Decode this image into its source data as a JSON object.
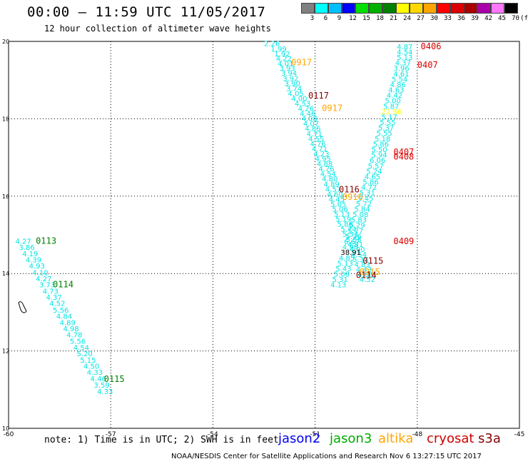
{
  "title": "00:00 – 11:59 UTC 11/05/2017",
  "subtitle": "12 hour collection of altimeter wave heights",
  "legend": {
    "unit": "(ft)",
    "bins": [
      {
        "label": "3",
        "color": "#808080"
      },
      {
        "label": "6",
        "color": "#00ffff"
      },
      {
        "label": "9",
        "color": "#00bfff"
      },
      {
        "label": "12",
        "color": "#0000ff"
      },
      {
        "label": "15",
        "color": "#00e000"
      },
      {
        "label": "18",
        "color": "#00b000"
      },
      {
        "label": "21",
        "color": "#008000"
      },
      {
        "label": "24",
        "color": "#ffff00"
      },
      {
        "label": "27",
        "color": "#ffd700"
      },
      {
        "label": "30",
        "color": "#ffa500"
      },
      {
        "label": "33",
        "color": "#ff0000"
      },
      {
        "label": "36",
        "color": "#dd0000"
      },
      {
        "label": "39",
        "color": "#aa0000"
      },
      {
        "label": "42",
        "color": "#aa00aa"
      },
      {
        "label": "45",
        "color": "#ff77ff"
      },
      {
        "label": "70",
        "color": "#000000"
      }
    ]
  },
  "footer": {
    "note": "note: 1) Time is in UTC; 2) SWH is in feet",
    "credit": "NOAA/NESDIS Center for Satellite Applications and Research   Nov  6 13:27:15 UTC 2017",
    "missions": [
      {
        "name": "jason2",
        "color": "#0000ee"
      },
      {
        "name": "jason3",
        "color": "#00aa00"
      },
      {
        "name": "altika",
        "color": "#ffa500"
      },
      {
        "name": "cryosat",
        "color": "#cc0000"
      },
      {
        "name": "s3a",
        "color": "#880000"
      }
    ]
  },
  "chart_data": {
    "type": "scatter",
    "title": "00:00 – 11:59 UTC 11/05/2017",
    "subtitle": "12 hour collection of altimeter wave heights",
    "xlim": [
      -60,
      -45
    ],
    "ylim": [
      10,
      20
    ],
    "xticks": [
      "-60",
      "-57",
      "-54",
      "-51",
      "-48",
      "-45"
    ],
    "yticks": [
      "10",
      "12",
      "14",
      "16",
      "18",
      "20"
    ],
    "grid": true,
    "value_color": "#00e5e5",
    "tracks": [
      {
        "name": "track-west",
        "points": [
          {
            "x": -59.8,
            "y": 14.77,
            "v": "4.27"
          },
          {
            "x": -59.7,
            "y": 14.61,
            "v": "3.86"
          },
          {
            "x": -59.6,
            "y": 14.45,
            "v": "4.19"
          },
          {
            "x": -59.5,
            "y": 14.29,
            "v": "4.39"
          },
          {
            "x": -59.4,
            "y": 14.13,
            "v": "4.93"
          },
          {
            "x": -59.3,
            "y": 13.96,
            "v": "4.10"
          },
          {
            "x": -59.2,
            "y": 13.8,
            "v": "4.27"
          },
          {
            "x": -59.1,
            "y": 13.64,
            "v": "3.73"
          },
          {
            "x": -59.0,
            "y": 13.48,
            "v": "4.73"
          },
          {
            "x": -58.9,
            "y": 13.32,
            "v": "4.37"
          },
          {
            "x": -58.8,
            "y": 13.16,
            "v": "4.52"
          },
          {
            "x": -58.7,
            "y": 12.99,
            "v": "5.56"
          },
          {
            "x": -58.6,
            "y": 12.83,
            "v": "4.84"
          },
          {
            "x": -58.5,
            "y": 12.67,
            "v": "4.89"
          },
          {
            "x": -58.4,
            "y": 12.51,
            "v": "4.98"
          },
          {
            "x": -58.3,
            "y": 12.35,
            "v": "4.78"
          },
          {
            "x": -58.2,
            "y": 12.19,
            "v": "5.56"
          },
          {
            "x": -58.1,
            "y": 12.02,
            "v": "4.54"
          },
          {
            "x": -58.0,
            "y": 11.86,
            "v": "5.20"
          },
          {
            "x": -57.9,
            "y": 11.7,
            "v": "5.15"
          },
          {
            "x": -57.8,
            "y": 11.54,
            "v": "4.50"
          },
          {
            "x": -57.7,
            "y": 11.38,
            "v": "4.33"
          },
          {
            "x": -57.6,
            "y": 11.22,
            "v": "4.46"
          },
          {
            "x": -57.5,
            "y": 11.05,
            "v": "3.59"
          },
          {
            "x": -57.4,
            "y": 10.89,
            "v": "4.33"
          }
        ]
      },
      {
        "name": "track-central",
        "points": [
          {
            "x": -52.5,
            "y": 19.88,
            "v": "2.26"
          },
          {
            "x": -52.3,
            "y": 19.74,
            "v": "1.99"
          },
          {
            "x": -52.2,
            "y": 19.61,
            "v": "1.92"
          },
          {
            "x": -52.15,
            "y": 19.49,
            "v": "4.22"
          },
          {
            "x": -52.1,
            "y": 19.36,
            "v": "4.01"
          },
          {
            "x": -52.05,
            "y": 19.24,
            "v": "3.93"
          },
          {
            "x": -52.0,
            "y": 19.11,
            "v": "3.94"
          },
          {
            "x": -51.95,
            "y": 18.98,
            "v": "3.92"
          },
          {
            "x": -51.9,
            "y": 18.85,
            "v": "3.90"
          },
          {
            "x": -51.85,
            "y": 18.72,
            "v": "3.74"
          },
          {
            "x": -51.8,
            "y": 18.59,
            "v": "4.05"
          },
          {
            "x": -51.7,
            "y": 18.46,
            "v": "4.00"
          },
          {
            "x": -51.6,
            "y": 18.33,
            "v": "4.53"
          },
          {
            "x": -51.5,
            "y": 18.2,
            "v": "4.26"
          },
          {
            "x": -51.45,
            "y": 18.07,
            "v": "4.46"
          },
          {
            "x": -51.4,
            "y": 17.94,
            "v": "4.08"
          },
          {
            "x": -51.35,
            "y": 17.81,
            "v": "4.07"
          },
          {
            "x": -51.3,
            "y": 17.68,
            "v": "4.86"
          },
          {
            "x": -51.25,
            "y": 17.55,
            "v": "4.71"
          },
          {
            "x": -51.2,
            "y": 17.42,
            "v": "4.55"
          },
          {
            "x": -51.15,
            "y": 17.29,
            "v": "4.76"
          },
          {
            "x": -51.1,
            "y": 17.16,
            "v": "4.71"
          },
          {
            "x": -51.05,
            "y": 17.03,
            "v": "4.23"
          },
          {
            "x": -51.0,
            "y": 16.9,
            "v": "4.95"
          },
          {
            "x": -50.95,
            "y": 16.77,
            "v": "4.88"
          },
          {
            "x": -50.9,
            "y": 16.64,
            "v": "4.76"
          },
          {
            "x": -50.85,
            "y": 16.51,
            "v": "4.54"
          },
          {
            "x": -50.8,
            "y": 16.38,
            "v": "4.80"
          },
          {
            "x": -50.75,
            "y": 16.25,
            "v": "4.89"
          },
          {
            "x": -50.7,
            "y": 16.12,
            "v": "4.57"
          },
          {
            "x": -50.65,
            "y": 15.99,
            "v": "4.60"
          },
          {
            "x": -50.6,
            "y": 15.86,
            "v": "4.45"
          },
          {
            "x": -50.55,
            "y": 15.73,
            "v": "5.05"
          },
          {
            "x": -50.5,
            "y": 15.6,
            "v": "5.06"
          },
          {
            "x": -50.45,
            "y": 15.47,
            "v": "5.13"
          },
          {
            "x": -50.4,
            "y": 15.34,
            "v": "5.19"
          },
          {
            "x": -50.35,
            "y": 15.21,
            "v": "5.86"
          },
          {
            "x": -50.25,
            "y": 15.08,
            "v": "5.74"
          },
          {
            "x": -50.2,
            "y": 14.95,
            "v": "5.33"
          },
          {
            "x": -50.1,
            "y": 14.82,
            "v": "5.55"
          },
          {
            "x": -50.05,
            "y": 14.69,
            "v": "4.81"
          },
          {
            "x": -50.0,
            "y": 14.56,
            "v": "4.90"
          },
          {
            "x": -49.95,
            "y": 14.43,
            "v": "4.54"
          },
          {
            "x": -49.9,
            "y": 14.3,
            "v": "5.37"
          },
          {
            "x": -49.85,
            "y": 14.17,
            "v": "4.83"
          },
          {
            "x": -49.8,
            "y": 14.04,
            "v": "4.43"
          },
          {
            "x": -49.75,
            "y": 13.91,
            "v": "4.60"
          },
          {
            "x": -49.7,
            "y": 13.78,
            "v": "4.52"
          }
        ]
      },
      {
        "name": "track-east",
        "points": [
          {
            "x": -48.6,
            "y": 19.8,
            "v": "4.87"
          },
          {
            "x": -48.6,
            "y": 19.66,
            "v": "4.54"
          },
          {
            "x": -48.6,
            "y": 19.52,
            "v": "5.13"
          },
          {
            "x": -48.65,
            "y": 19.38,
            "v": "4.37"
          },
          {
            "x": -48.7,
            "y": 19.24,
            "v": "3.96"
          },
          {
            "x": -48.7,
            "y": 19.1,
            "v": "4.61"
          },
          {
            "x": -48.75,
            "y": 18.96,
            "v": "5.54"
          },
          {
            "x": -48.8,
            "y": 18.82,
            "v": "4.86"
          },
          {
            "x": -48.85,
            "y": 18.68,
            "v": "4.63"
          },
          {
            "x": -48.9,
            "y": 18.54,
            "v": "4.42"
          },
          {
            "x": -48.95,
            "y": 18.4,
            "v": "5.00"
          },
          {
            "x": -49.0,
            "y": 18.26,
            "v": "5.87"
          },
          {
            "x": -49.05,
            "y": 18.12,
            "v": "22.56",
            "color": "#ffff00"
          },
          {
            "x": -49.05,
            "y": 17.98,
            "v": "5.17"
          },
          {
            "x": -49.1,
            "y": 17.84,
            "v": "5.55"
          },
          {
            "x": -49.15,
            "y": 17.7,
            "v": "5.37"
          },
          {
            "x": -49.2,
            "y": 17.56,
            "v": "5.55"
          },
          {
            "x": -49.25,
            "y": 17.42,
            "v": "5.18"
          },
          {
            "x": -49.3,
            "y": 17.28,
            "v": "5.86"
          },
          {
            "x": -49.35,
            "y": 17.14,
            "v": "5.50"
          },
          {
            "x": -49.35,
            "y": 17.0,
            "v": "5.94"
          },
          {
            "x": -49.4,
            "y": 16.86,
            "v": "6.06"
          },
          {
            "x": -49.45,
            "y": 16.72,
            "v": "5.57"
          },
          {
            "x": -49.5,
            "y": 16.58,
            "v": "5.24"
          },
          {
            "x": -49.55,
            "y": 16.44,
            "v": "4.65"
          },
          {
            "x": -49.6,
            "y": 16.3,
            "v": "5.86"
          },
          {
            "x": -49.65,
            "y": 16.16,
            "v": "4.72"
          },
          {
            "x": -49.7,
            "y": 16.02,
            "v": "5.31"
          },
          {
            "x": -49.75,
            "y": 15.88,
            "v": "5.45"
          },
          {
            "x": -49.8,
            "y": 15.74,
            "v": "5.72"
          },
          {
            "x": -49.85,
            "y": 15.6,
            "v": "5.84"
          },
          {
            "x": -49.9,
            "y": 15.46,
            "v": "5.08"
          },
          {
            "x": -49.95,
            "y": 15.32,
            "v": "5.83"
          },
          {
            "x": -50.0,
            "y": 15.18,
            "v": "5.29"
          },
          {
            "x": -50.05,
            "y": 15.04,
            "v": "5.77"
          },
          {
            "x": -50.1,
            "y": 14.9,
            "v": "5.36"
          },
          {
            "x": -50.15,
            "y": 14.76,
            "v": "6.67"
          },
          {
            "x": -50.2,
            "y": 14.62,
            "v": "4.98"
          },
          {
            "x": -50.25,
            "y": 14.48,
            "v": "38.91",
            "color": "#000000"
          },
          {
            "x": -50.3,
            "y": 14.34,
            "v": "4.85"
          },
          {
            "x": -50.35,
            "y": 14.2,
            "v": "5.13"
          },
          {
            "x": -50.4,
            "y": 14.06,
            "v": "5.43"
          },
          {
            "x": -50.45,
            "y": 13.92,
            "v": "5.08"
          },
          {
            "x": -50.5,
            "y": 13.78,
            "v": "5.31"
          },
          {
            "x": -50.55,
            "y": 13.64,
            "v": "4.13"
          }
        ]
      }
    ],
    "pass_labels": [
      {
        "text": "0406",
        "x": -47.9,
        "y": 19.8,
        "color": "#dd0000"
      },
      {
        "text": "0407",
        "x": -48.0,
        "y": 19.32,
        "color": "#dd0000"
      },
      {
        "text": "0917",
        "x": -51.7,
        "y": 19.38,
        "color": "#ffa500"
      },
      {
        "text": "0117",
        "x": -51.2,
        "y": 18.52,
        "color": "#880000"
      },
      {
        "text": "0917",
        "x": -50.8,
        "y": 18.2,
        "color": "#ffa500"
      },
      {
        "text": "0407",
        "x": -48.7,
        "y": 17.07,
        "color": "#dd0000"
      },
      {
        "text": "0408",
        "x": -48.7,
        "y": 16.95,
        "color": "#dd0000"
      },
      {
        "text": "0113",
        "x": -59.2,
        "y": 14.77,
        "color": "#008000"
      },
      {
        "text": "0116",
        "x": -50.3,
        "y": 16.1,
        "color": "#880000"
      },
      {
        "text": "0916",
        "x": -50.2,
        "y": 15.9,
        "color": "#ffa500"
      },
      {
        "text": "0114",
        "x": -58.7,
        "y": 13.64,
        "color": "#008000"
      },
      {
        "text": "0409",
        "x": -48.7,
        "y": 14.76,
        "color": "#dd0000"
      },
      {
        "text": "0115",
        "x": -57.2,
        "y": 11.2,
        "color": "#008000"
      },
      {
        "text": "0115",
        "x": -49.6,
        "y": 14.25,
        "color": "#880000"
      },
      {
        "text": "0915",
        "x": -49.7,
        "y": 13.97,
        "color": "#ffa500"
      },
      {
        "text": "0114",
        "x": -49.8,
        "y": 13.88,
        "color": "#880000"
      }
    ]
  }
}
